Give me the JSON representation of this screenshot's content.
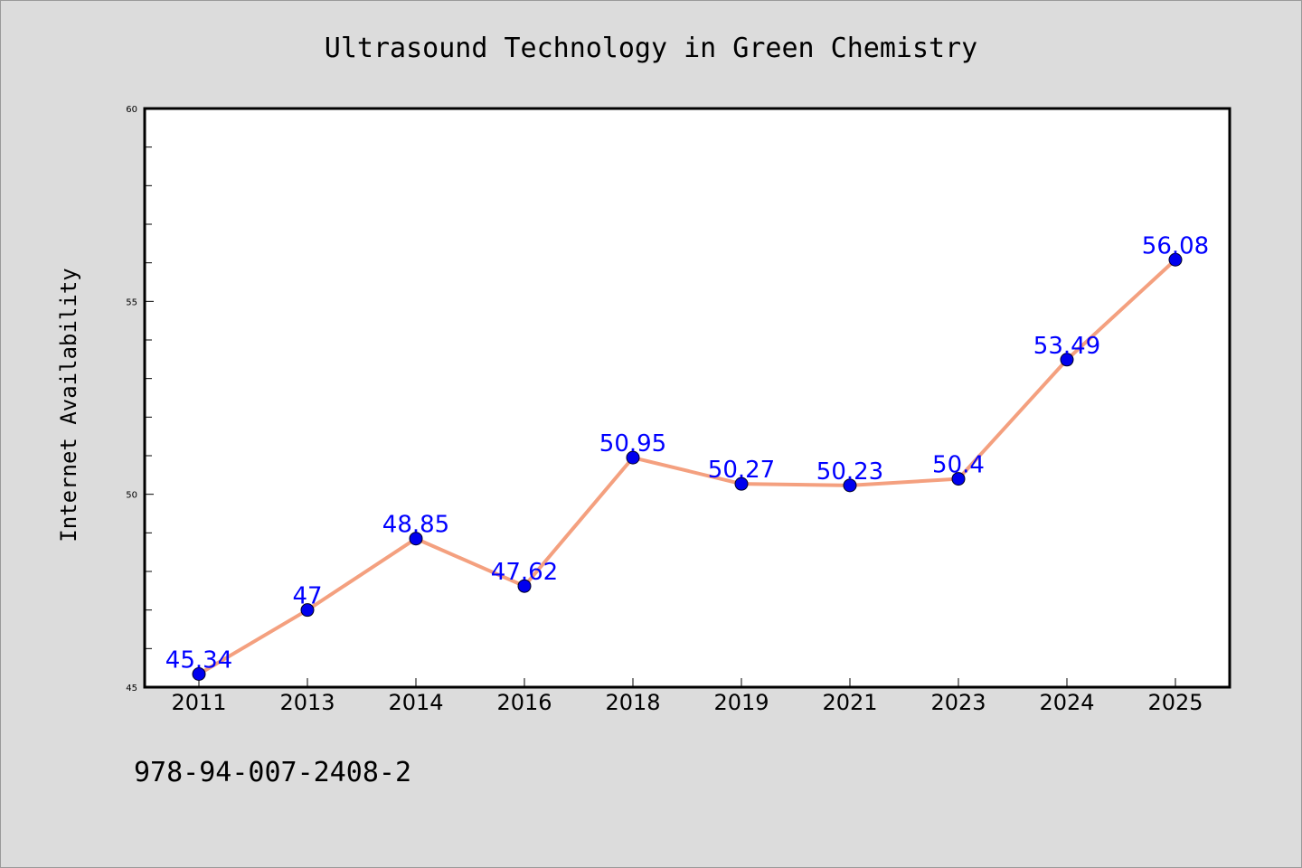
{
  "chart_data": {
    "type": "line",
    "title": "Ultrasound Technology in Green Chemistry",
    "xlabel": "",
    "ylabel": "Internet Availability",
    "categories": [
      "2011",
      "2013",
      "2014",
      "2016",
      "2018",
      "2019",
      "2021",
      "2023",
      "2024",
      "2025"
    ],
    "series": [
      {
        "values": [
          45.34,
          47,
          48.85,
          47.62,
          50.95,
          50.27,
          50.23,
          50.4,
          53.49,
          56.08
        ],
        "labels": [
          "45.34",
          "47",
          "48.85",
          "47.62",
          "50.95",
          "50.27",
          "50.23",
          "50.4",
          "53.49",
          "56.08"
        ],
        "line_color": "#f4a07f",
        "marker_color": "#0000ee",
        "label_color": "#0000ff"
      }
    ],
    "ylim": [
      45,
      60
    ],
    "yticks": [
      "45",
      "50",
      "55",
      "60"
    ],
    "grid": false,
    "legend": "none"
  },
  "footer_text": "978-94-007-2408-2",
  "colors": {
    "background": "#dcdcdc",
    "plot_area": "#ffffff"
  }
}
